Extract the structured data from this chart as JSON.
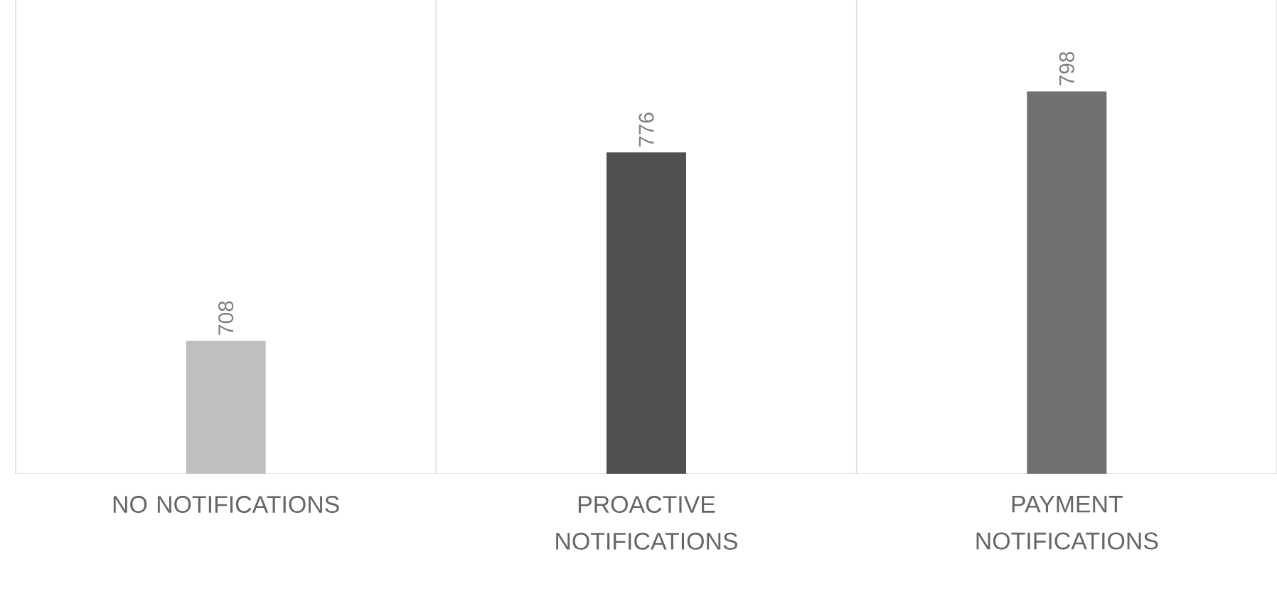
{
  "chart_data": {
    "type": "bar",
    "categories": [
      "NO NOTIFICATIONS",
      "PROACTIVE NOTIFICATIONS",
      "PAYMENT NOTIFICATIONS"
    ],
    "values": [
      708,
      776,
      798
    ],
    "colors": [
      "#bfbfbf",
      "#505050",
      "#707070"
    ],
    "ylim": [
      660,
      831
    ],
    "tick_labels": "x",
    "grid": "x",
    "data_labels": true
  }
}
